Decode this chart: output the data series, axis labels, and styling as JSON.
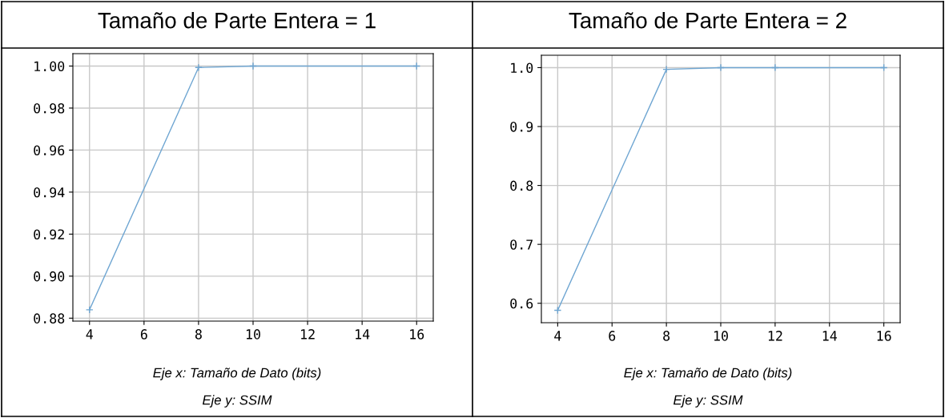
{
  "chart_data": [
    {
      "type": "line",
      "title": "Tamaño de Parte Entera = 1",
      "x": [
        4,
        8,
        10,
        16
      ],
      "series": [
        {
          "color": "#6fa6d2",
          "values": [
            0.884,
            0.9993,
            1.0,
            1.0
          ]
        }
      ],
      "xlim": [
        3.39,
        16.61
      ],
      "xticks": [
        4,
        6,
        8,
        10,
        12,
        14,
        16
      ],
      "ylim": [
        0.8786,
        1.0059
      ],
      "yticks": [
        {
          "value": 0.88,
          "label": "0.88"
        },
        {
          "value": 0.9,
          "label": "0.90"
        },
        {
          "value": 0.92,
          "label": "0.92"
        },
        {
          "value": 0.94,
          "label": "0.94"
        },
        {
          "value": 0.96,
          "label": "0.96"
        },
        {
          "value": 0.98,
          "label": "0.98"
        },
        {
          "value": 1.0,
          "label": "1.00"
        }
      ],
      "grid": true,
      "marker": "cross",
      "line_style": "solid",
      "legend": false,
      "annotations": [
        "Eje x: Tamaño de Dato (bits)",
        "Eje y: SSIM"
      ]
    },
    {
      "type": "line",
      "title": "Tamaño de Parte Entera = 2",
      "x": [
        4,
        8,
        10,
        12,
        16
      ],
      "series": [
        {
          "color": "#6fa6d2",
          "values": [
            0.588,
            0.997,
            1.0,
            1.0,
            1.0
          ]
        }
      ],
      "xlim": [
        3.4,
        16.6
      ],
      "xticks": [
        4,
        6,
        8,
        10,
        12,
        14,
        16
      ],
      "ylim": [
        0.567,
        1.021
      ],
      "yticks": [
        0.6,
        0.7,
        0.8,
        0.9,
        {
          "value": 1.0,
          "label": "1.0"
        }
      ],
      "grid": true,
      "marker": "cross",
      "line_style": "solid",
      "legend": false,
      "annotations": [
        "Eje x: Tamaño de Dato (bits)",
        "Eje y: SSIM"
      ]
    }
  ]
}
